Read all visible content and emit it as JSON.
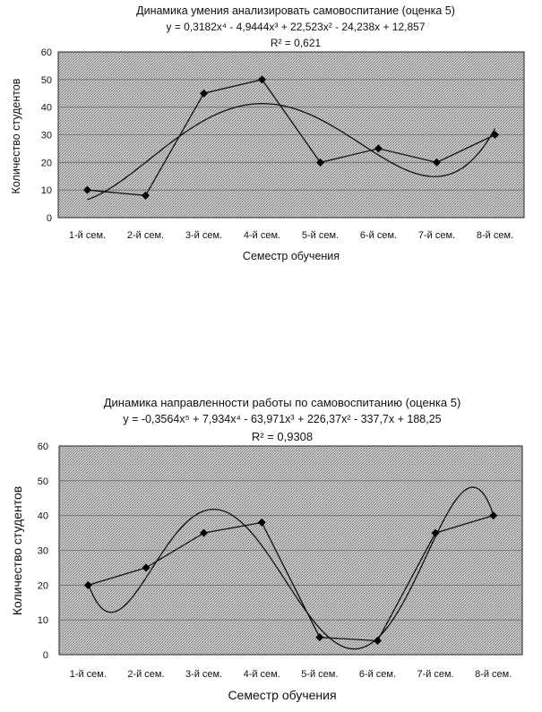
{
  "chart_data": [
    {
      "type": "line",
      "title": "Динамика умения анализировать самовоспитание (оценка 5)",
      "trend_equation": "y = 0,3182x⁴ - 4,9444x³ + 22,523x² - 24,238x + 12,857",
      "r_squared": "R² = 0,621",
      "xlabel": "Семестр обучения",
      "ylabel": "Количество студентов",
      "categories": [
        "1-й сем.",
        "2-й сем.",
        "3-й сем.",
        "4-й сем.",
        "5-й сем.",
        "6-й сем.",
        "7-й сем.",
        "8-й сем."
      ],
      "values": [
        10,
        8,
        45,
        50,
        20,
        25,
        20,
        30
      ],
      "trend_coefficients": [
        0.3182,
        -4.9444,
        22.523,
        -24.238,
        12.857
      ],
      "ylim": [
        0,
        60
      ],
      "yticks": [
        "0",
        "10",
        "20",
        "30",
        "40",
        "50",
        "60"
      ],
      "grid": true,
      "marker": "diamond",
      "colors": {
        "line": "#111111",
        "plot_bg": "#b8b8b8",
        "grid": "#6a6a6a"
      }
    },
    {
      "type": "line",
      "title": "Динамика направленности работы по самовоспитанию (оценка 5)",
      "trend_equation": "y = -0,3564x⁵ + 7,934x⁴ - 63,971x³ + 226,37x² - 337,7x + 188,25",
      "r_squared": "R² = 0,9308",
      "xlabel": "Семестр обучения",
      "ylabel": "Количество студентов",
      "categories": [
        "1-й сем.",
        "2-й сем.",
        "3-й сем.",
        "4-й сем.",
        "5-й сем.",
        "6-й сем.",
        "7-й сем.",
        "8-й сем."
      ],
      "values": [
        20,
        25,
        35,
        38,
        5,
        4,
        35,
        40
      ],
      "trend_coefficients": [
        -0.3564,
        7.934,
        -63.971,
        226.37,
        -337.7,
        188.25
      ],
      "ylim": [
        0,
        60
      ],
      "yticks": [
        "0",
        "10",
        "20",
        "30",
        "40",
        "50",
        "60"
      ],
      "grid": true,
      "marker": "diamond",
      "colors": {
        "line": "#111111",
        "plot_bg": "#b8b8b8",
        "grid": "#6a6a6a"
      }
    }
  ]
}
